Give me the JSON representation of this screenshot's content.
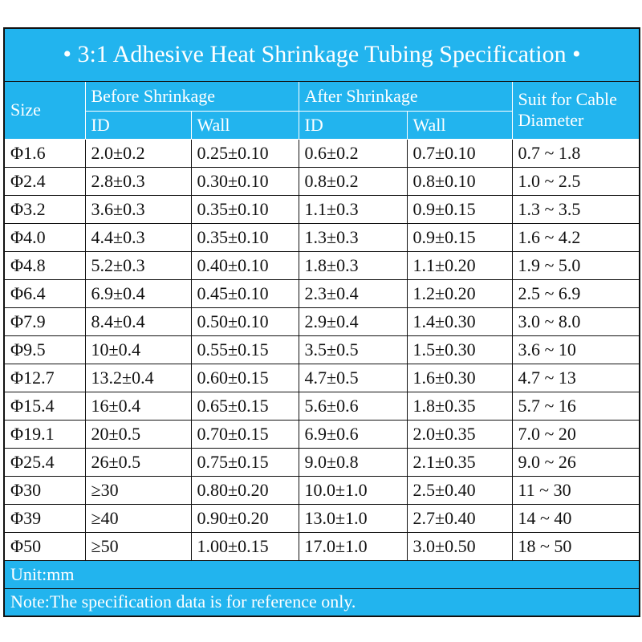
{
  "title": "• 3:1 Adhesive Heat Shrinkage Tubing Specification •",
  "header": {
    "size": "Size",
    "before": "Before Shrinkage",
    "after": "After Shrinkage",
    "suit": "Suit for Cable Diameter",
    "before_id": "ID",
    "before_wall": "Wall",
    "after_id": "ID",
    "after_wall": "Wall"
  },
  "table": {
    "rows": [
      [
        "Φ1.6",
        "2.0±0.2",
        "0.25±0.10",
        "0.6±0.2",
        "0.7±0.10",
        "0.7 ~ 1.8"
      ],
      [
        "Φ2.4",
        "2.8±0.3",
        "0.30±0.10",
        "0.8±0.2",
        "0.8±0.10",
        "1.0 ~ 2.5"
      ],
      [
        "Φ3.2",
        "3.6±0.3",
        "0.35±0.10",
        "1.1±0.3",
        "0.9±0.15",
        "1.3 ~ 3.5"
      ],
      [
        "Φ4.0",
        "4.4±0.3",
        "0.35±0.10",
        "1.3±0.3",
        "0.9±0.15",
        "1.6 ~ 4.2"
      ],
      [
        "Φ4.8",
        "5.2±0.3",
        "0.40±0.10",
        "1.8±0.3",
        "1.1±0.20",
        "1.9 ~ 5.0"
      ],
      [
        "Φ6.4",
        "6.9±0.4",
        "0.45±0.10",
        "2.3±0.4",
        "1.2±0.20",
        "2.5 ~ 6.9"
      ],
      [
        "Φ7.9",
        "8.4±0.4",
        "0.50±0.10",
        "2.9±0.4",
        "1.4±0.30",
        "3.0 ~ 8.0"
      ],
      [
        "Φ9.5",
        "10±0.4",
        "0.55±0.15",
        "3.5±0.5",
        "1.5±0.30",
        "3.6 ~ 10"
      ],
      [
        "Φ12.7",
        "13.2±0.4",
        "0.60±0.15",
        "4.7±0.5",
        "1.6±0.30",
        "4.7 ~ 13"
      ],
      [
        "Φ15.4",
        "16±0.4",
        "0.65±0.15",
        "5.6±0.6",
        "1.8±0.35",
        "5.7 ~ 16"
      ],
      [
        "Φ19.1",
        "20±0.5",
        "0.70±0.15",
        "6.9±0.6",
        "2.0±0.35",
        "7.0 ~ 20"
      ],
      [
        "Φ25.4",
        "26±0.5",
        "0.75±0.15",
        "9.0±0.8",
        "2.1±0.35",
        "9.0 ~ 26"
      ],
      [
        "Φ30",
        "≥30",
        "0.80±0.20",
        "10.0±1.0",
        "2.5±0.40",
        "11 ~ 30"
      ],
      [
        "Φ39",
        "≥40",
        "0.90±0.20",
        "13.0±1.0",
        "2.7±0.40",
        "14 ~ 40"
      ],
      [
        "Φ50",
        "≥50",
        "1.00±0.15",
        "17.0±1.0",
        "3.0±0.50",
        "18 ~ 50"
      ]
    ]
  },
  "footer": {
    "unit": "Unit:mm",
    "note": "Note:The specification data is for reference only."
  }
}
